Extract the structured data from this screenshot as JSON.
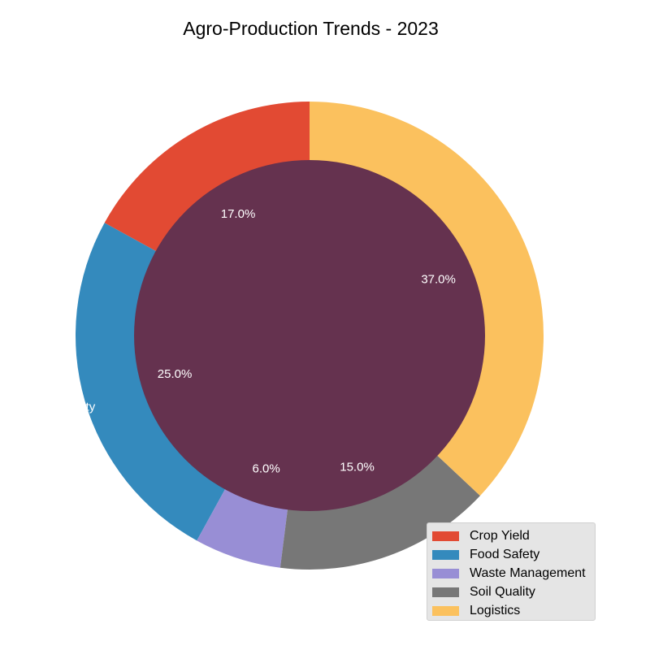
{
  "chart_data": {
    "type": "pie",
    "title": "Agro-Production Trends - 2023",
    "categories": [
      "Crop Yield",
      "Food Safety",
      "Waste Management",
      "Soil Quality",
      "Logistics"
    ],
    "values": [
      17,
      25,
      6,
      15,
      37
    ],
    "percent_labels": [
      "17.0%",
      "25.0%",
      "6.0%",
      "15.0%",
      "37.0%"
    ],
    "colors": [
      "#E24A33",
      "#348ABD",
      "#988ED5",
      "#777777",
      "#FBC15E"
    ],
    "center_color": "#65324F",
    "legend": {
      "position": "bottom-right",
      "entries": [
        "Crop Yield",
        "Food Safety",
        "Waste Management",
        "Soil Quality",
        "Logistics"
      ]
    }
  }
}
